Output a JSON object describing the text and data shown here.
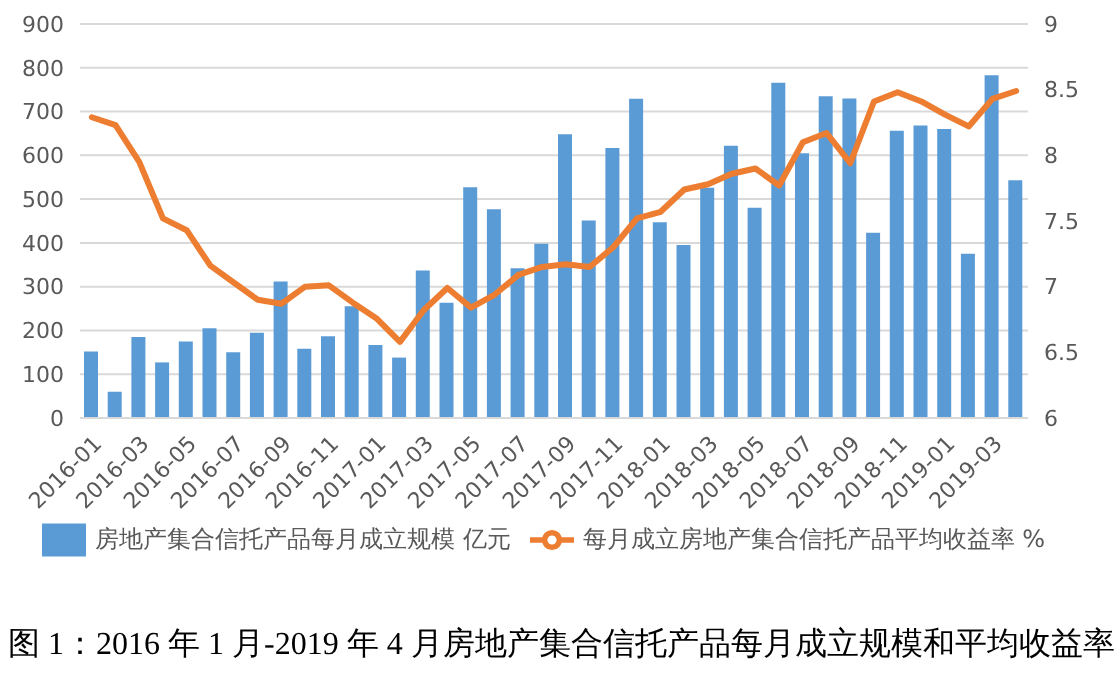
{
  "chart_data": {
    "type": "bar",
    "title": "图 1：2016 年 1 月-2019 年 4 月房地产集合信托产品每月成立规模和平均收益率",
    "categories": [
      "2016-01",
      null,
      "2016-03",
      null,
      "2016-05",
      null,
      "2016-07",
      null,
      "2016-09",
      null,
      "2016-11",
      null,
      "2017-01",
      null,
      "2017-03",
      null,
      "2017-05",
      null,
      "2017-07",
      null,
      "2017-09",
      null,
      "2017-11",
      null,
      "2018-01",
      null,
      "2018-03",
      null,
      "2018-05",
      null,
      "2018-07",
      null,
      "2018-09",
      null,
      "2018-11",
      null,
      "2019-01",
      null,
      "2019-03",
      null
    ],
    "series": [
      {
        "name": "房地产集合信托产品每月成立规模 亿元",
        "color": "#5b9bd5",
        "values": [
          152,
          60,
          185,
          127,
          175,
          205,
          150,
          195,
          312,
          158,
          187,
          255,
          167,
          138,
          337,
          263,
          527,
          477,
          342,
          398,
          648,
          451,
          617,
          729,
          447,
          395,
          526,
          622,
          480,
          766,
          605,
          735,
          730,
          423,
          656,
          668,
          660,
          375,
          783,
          543
        ]
      },
      {
        "name": "每月成立房地产集合信托产品平均收益率 %",
        "type": "line",
        "axis": "y2",
        "color": "#ed7d31",
        "values": [
          8.29,
          8.23,
          7.95,
          7.52,
          7.43,
          7.16,
          7.03,
          6.9,
          6.87,
          7.0,
          7.01,
          6.88,
          6.76,
          6.58,
          6.82,
          6.99,
          6.84,
          6.94,
          7.09,
          7.15,
          7.17,
          7.15,
          7.3,
          7.52,
          7.57,
          7.74,
          7.78,
          7.86,
          7.9,
          7.77,
          8.1,
          8.17,
          7.94,
          8.41,
          8.48,
          8.41,
          8.31,
          8.22,
          8.43,
          8.49
        ]
      }
    ],
    "ylim": [
      0,
      900
    ],
    "yticks": [
      0,
      100,
      200,
      300,
      400,
      500,
      600,
      700,
      800,
      900
    ],
    "y2lim": [
      6,
      9
    ],
    "y2ticks": [
      6,
      6.5,
      7,
      7.5,
      8,
      8.5,
      9
    ],
    "grid": "y",
    "legend": "bottom",
    "marker": "none"
  }
}
